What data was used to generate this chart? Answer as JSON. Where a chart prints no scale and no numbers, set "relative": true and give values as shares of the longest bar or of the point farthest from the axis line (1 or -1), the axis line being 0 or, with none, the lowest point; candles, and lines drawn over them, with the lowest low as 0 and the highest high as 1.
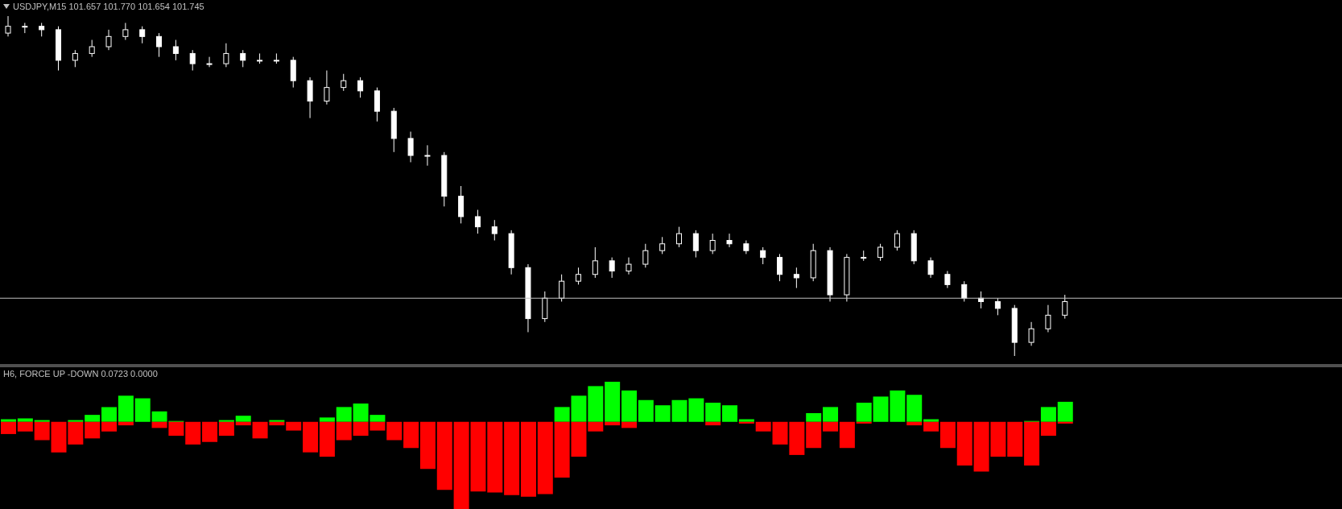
{
  "chart_data": [
    {
      "type": "candlestick",
      "title": "USDJPY,M15  101.657 101.770 101.654 101.745",
      "relative": true,
      "color": "#ffffff",
      "categories": [
        null,
        null,
        null,
        null,
        null,
        null,
        null,
        null,
        null,
        null,
        null,
        null,
        null,
        null,
        null,
        null,
        null,
        null,
        null,
        null,
        null,
        null,
        null,
        null,
        null,
        null,
        null,
        null,
        null,
        null,
        null,
        null,
        null,
        null,
        null,
        null,
        null,
        null,
        null,
        null,
        null,
        null,
        null,
        null,
        null,
        null,
        null,
        null,
        null,
        null,
        null,
        null,
        null,
        null,
        null,
        null,
        null,
        null,
        null,
        null,
        null,
        null,
        null,
        null,
        null,
        null,
        null,
        null,
        null,
        null,
        null,
        null,
        null,
        null,
        null,
        null,
        null,
        null,
        null,
        null
      ],
      "ohlc": [
        [
          0.95,
          1.0,
          0.94,
          0.97
        ],
        [
          0.97,
          0.98,
          0.95,
          0.97
        ],
        [
          0.97,
          0.98,
          0.94,
          0.96
        ],
        [
          0.96,
          0.97,
          0.84,
          0.87
        ],
        [
          0.87,
          0.9,
          0.85,
          0.89
        ],
        [
          0.89,
          0.93,
          0.88,
          0.91
        ],
        [
          0.91,
          0.96,
          0.9,
          0.94
        ],
        [
          0.94,
          0.98,
          0.93,
          0.96
        ],
        [
          0.96,
          0.97,
          0.92,
          0.94
        ],
        [
          0.94,
          0.95,
          0.88,
          0.91
        ],
        [
          0.91,
          0.93,
          0.87,
          0.89
        ],
        [
          0.89,
          0.9,
          0.84,
          0.86
        ],
        [
          0.86,
          0.88,
          0.85,
          0.86
        ],
        [
          0.86,
          0.92,
          0.85,
          0.89
        ],
        [
          0.89,
          0.9,
          0.85,
          0.87
        ],
        [
          0.87,
          0.89,
          0.86,
          0.87
        ],
        [
          0.87,
          0.89,
          0.86,
          0.87
        ],
        [
          0.87,
          0.88,
          0.79,
          0.81
        ],
        [
          0.81,
          0.82,
          0.7,
          0.75
        ],
        [
          0.75,
          0.84,
          0.74,
          0.79
        ],
        [
          0.79,
          0.83,
          0.78,
          0.81
        ],
        [
          0.81,
          0.82,
          0.76,
          0.78
        ],
        [
          0.78,
          0.79,
          0.69,
          0.72
        ],
        [
          0.72,
          0.73,
          0.6,
          0.64
        ],
        [
          0.64,
          0.66,
          0.57,
          0.59
        ],
        [
          0.59,
          0.62,
          0.56,
          0.59
        ],
        [
          0.59,
          0.6,
          0.44,
          0.47
        ],
        [
          0.47,
          0.5,
          0.39,
          0.41
        ],
        [
          0.41,
          0.43,
          0.36,
          0.38
        ],
        [
          0.38,
          0.4,
          0.34,
          0.36
        ],
        [
          0.36,
          0.37,
          0.24,
          0.26
        ],
        [
          0.26,
          0.27,
          0.07,
          0.11
        ],
        [
          0.11,
          0.19,
          0.1,
          0.17
        ],
        [
          0.17,
          0.24,
          0.16,
          0.22
        ],
        [
          0.22,
          0.26,
          0.21,
          0.24
        ],
        [
          0.24,
          0.32,
          0.23,
          0.28
        ],
        [
          0.28,
          0.29,
          0.23,
          0.25
        ],
        [
          0.25,
          0.29,
          0.24,
          0.27
        ],
        [
          0.27,
          0.33,
          0.26,
          0.31
        ],
        [
          0.31,
          0.35,
          0.3,
          0.33
        ],
        [
          0.33,
          0.38,
          0.32,
          0.36
        ],
        [
          0.36,
          0.37,
          0.29,
          0.31
        ],
        [
          0.31,
          0.36,
          0.3,
          0.34
        ],
        [
          0.34,
          0.36,
          0.32,
          0.33
        ],
        [
          0.33,
          0.34,
          0.3,
          0.31
        ],
        [
          0.31,
          0.32,
          0.27,
          0.29
        ],
        [
          0.29,
          0.3,
          0.22,
          0.24
        ],
        [
          0.24,
          0.26,
          0.2,
          0.23
        ],
        [
          0.23,
          0.33,
          0.22,
          0.31
        ],
        [
          0.31,
          0.32,
          0.16,
          0.18
        ],
        [
          0.18,
          0.3,
          0.16,
          0.29
        ],
        [
          0.29,
          0.31,
          0.28,
          0.29
        ],
        [
          0.29,
          0.33,
          0.28,
          0.32
        ],
        [
          0.32,
          0.37,
          0.31,
          0.36
        ],
        [
          0.36,
          0.37,
          0.27,
          0.28
        ],
        [
          0.28,
          0.29,
          0.23,
          0.24
        ],
        [
          0.24,
          0.25,
          0.2,
          0.21
        ],
        [
          0.21,
          0.22,
          0.16,
          0.17
        ],
        [
          0.17,
          0.19,
          0.14,
          0.16
        ],
        [
          0.16,
          0.17,
          0.12,
          0.14
        ],
        [
          0.14,
          0.15,
          0.0,
          0.04
        ],
        [
          0.04,
          0.1,
          0.03,
          0.08
        ],
        [
          0.08,
          0.15,
          0.07,
          0.12
        ],
        [
          0.12,
          0.18,
          0.11,
          0.16
        ],
        null,
        null,
        null,
        null,
        null,
        null,
        null,
        null,
        null,
        null,
        null,
        null,
        null,
        null,
        null,
        null
      ],
      "ref_lines": [
        {
          "axis": "y",
          "value": 0.17,
          "color": "#c0c0c0"
        }
      ]
    },
    {
      "type": "bar",
      "title": "H6, FORCE UP -DOWN  0.0723 0.0000",
      "relative": true,
      "stacked": true,
      "categories": [
        null,
        null,
        null,
        null,
        null,
        null,
        null,
        null,
        null,
        null,
        null,
        null,
        null,
        null,
        null,
        null,
        null,
        null,
        null,
        null,
        null,
        null,
        null,
        null,
        null,
        null,
        null,
        null,
        null,
        null,
        null,
        null,
        null,
        null,
        null,
        null,
        null,
        null,
        null,
        null,
        null,
        null,
        null,
        null,
        null,
        null,
        null,
        null,
        null,
        null,
        null,
        null,
        null,
        null,
        null,
        null,
        null,
        null,
        null,
        null,
        null,
        null,
        null,
        null,
        null,
        null,
        null,
        null,
        null,
        null,
        null,
        null,
        null,
        null,
        null,
        null,
        null,
        null,
        null,
        null
      ],
      "series": [
        {
          "color": "#00ff00",
          "values": [
            0.03,
            0.04,
            0.02,
            0,
            0.02,
            0.08,
            0.17,
            0.3,
            0.27,
            0.12,
            0.01,
            0,
            0,
            0.02,
            0.07,
            0,
            0.02,
            0,
            0,
            0.05,
            0.17,
            0.21,
            0.08,
            0,
            0,
            0,
            0,
            0,
            0,
            0,
            0,
            0,
            0,
            0.17,
            0.3,
            0.41,
            0.46,
            0.36,
            0.25,
            0.19,
            0.25,
            0.27,
            0.22,
            0.19,
            0.03,
            0,
            0,
            0,
            0.1,
            0.17,
            0,
            0.22,
            0.29,
            0.36,
            0.31,
            0.03,
            0,
            0,
            0,
            0,
            0,
            0.01,
            0.17,
            0.23,
            null,
            null,
            null,
            null,
            null,
            null,
            null,
            null,
            null,
            null,
            null,
            null,
            null,
            null,
            null,
            null
          ]
        },
        {
          "color": "#ff0000",
          "values": [
            -0.14,
            -0.11,
            -0.21,
            -0.35,
            -0.26,
            -0.19,
            -0.11,
            -0.04,
            0,
            -0.07,
            -0.16,
            -0.26,
            -0.23,
            -0.16,
            -0.04,
            -0.19,
            -0.04,
            -0.1,
            -0.35,
            -0.4,
            -0.21,
            -0.16,
            -0.1,
            -0.21,
            -0.3,
            -0.54,
            -0.78,
            -1,
            -0.8,
            -0.81,
            -0.84,
            -0.86,
            -0.83,
            -0.64,
            -0.4,
            -0.11,
            -0.04,
            -0.07,
            0,
            0,
            0,
            0,
            -0.04,
            0,
            -0.02,
            -0.11,
            -0.26,
            -0.38,
            -0.3,
            -0.11,
            -0.3,
            -0.02,
            0,
            0,
            -0.04,
            -0.11,
            -0.3,
            -0.5,
            -0.57,
            -0.4,
            -0.4,
            -0.5,
            -0.16,
            -0.02,
            null,
            null,
            null,
            null,
            null,
            null,
            null,
            null,
            null,
            null,
            null,
            null,
            null,
            null,
            null,
            null
          ]
        }
      ]
    }
  ]
}
